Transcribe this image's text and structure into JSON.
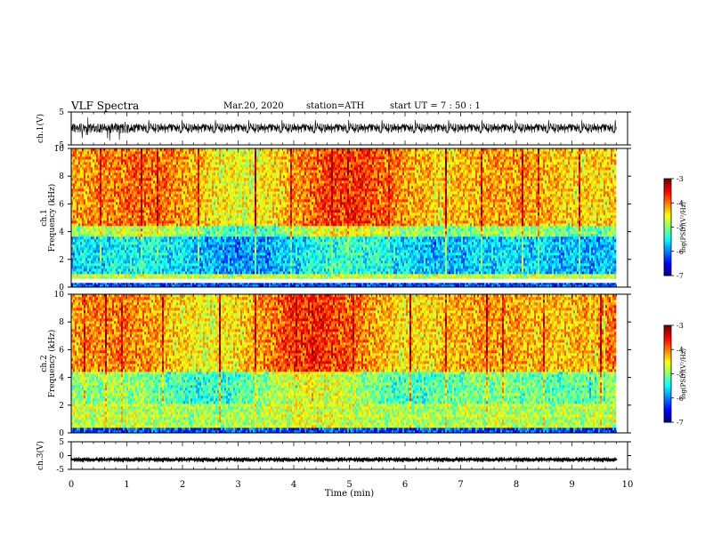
{
  "header": {
    "title": "VLF  Spectra",
    "date": "Mar.20, 2020",
    "station": "station=ATH",
    "start": "start  UT  =    7  : 50 : 1"
  },
  "chart_data": [
    {
      "type": "line",
      "panel": "ch1-waveform",
      "ylabel": "ch.1(V)",
      "ylim": [
        -5,
        5
      ],
      "yticks": [
        "5",
        "-5"
      ],
      "x_range": [
        0,
        10
      ],
      "data_extent_min": 9.8,
      "noise_center": 0,
      "noise_amplitude": 1.5
    },
    {
      "type": "heatmap",
      "panel": "ch1-spectrogram",
      "ylabel_top": "ch.1",
      "ylabel": "Frequency  (kHz)",
      "ylim": [
        0,
        10
      ],
      "yticks": [
        "0",
        "2",
        "4",
        "6",
        "8",
        "10"
      ],
      "x_range": [
        0,
        10
      ],
      "colorbar": {
        "label": "log(PSD)(V²/Hz)",
        "range": [
          -7,
          -3
        ],
        "ticks": [
          "-3",
          "-4",
          "-5",
          "-6",
          "-7"
        ]
      }
    },
    {
      "type": "heatmap",
      "panel": "ch2-spectrogram",
      "ylabel_top": "ch.2",
      "ylabel": "Frequency  (kHz)",
      "ylim": [
        0,
        10
      ],
      "yticks": [
        "0",
        "2",
        "4",
        "6",
        "8",
        "10"
      ],
      "x_range": [
        0,
        10
      ],
      "colorbar": {
        "label": "log(PSD)(V²/Hz)",
        "range": [
          -7,
          -3
        ],
        "ticks": [
          "-3",
          "-4",
          "-5",
          "-6",
          "-7"
        ]
      }
    },
    {
      "type": "line",
      "panel": "ch3-waveform",
      "ylabel": "ch.3(V)",
      "ylim": [
        -5,
        5
      ],
      "yticks": [
        "5",
        "0",
        "-5"
      ],
      "x_range": [
        0,
        10
      ],
      "data_extent_min": 9.8,
      "noise_center": -1.5,
      "noise_amplitude": 0.3
    }
  ],
  "xaxis": {
    "label": "Time  (min)",
    "ticks": [
      "0",
      "1",
      "2",
      "3",
      "4",
      "5",
      "6",
      "7",
      "8",
      "9",
      "10"
    ]
  }
}
